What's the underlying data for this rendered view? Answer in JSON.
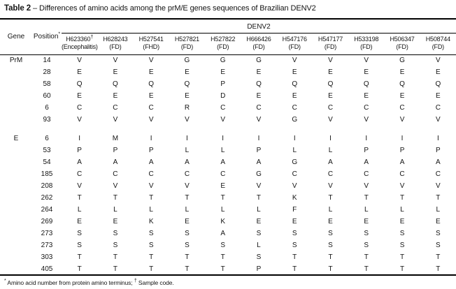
{
  "title": {
    "bold": "Table 2",
    "rest": "– Differences of amino acids among the prM/E genes sequences of Brazilian DENV2"
  },
  "header": {
    "gene": "Gene",
    "position": "Position",
    "position_mark": "*",
    "group": "DENV2",
    "columns": [
      {
        "id": "H623360",
        "mark": "†",
        "type": "(Encephalitis)"
      },
      {
        "id": "H628243",
        "mark": "",
        "type": "(FD)"
      },
      {
        "id": "H527541",
        "mark": "",
        "type": "(FHD)"
      },
      {
        "id": "H527821",
        "mark": "",
        "type": "(FD)"
      },
      {
        "id": "H527822",
        "mark": "",
        "type": "(FD)"
      },
      {
        "id": "H666426",
        "mark": "",
        "type": "(FD)"
      },
      {
        "id": "H547176",
        "mark": "",
        "type": "(FD)"
      },
      {
        "id": "H547177",
        "mark": "",
        "type": "(FD)"
      },
      {
        "id": "H533198",
        "mark": "",
        "type": "(FD)"
      },
      {
        "id": "H506347",
        "mark": "",
        "type": "(FD)"
      },
      {
        "id": "H508744",
        "mark": "",
        "type": "(FD)"
      }
    ]
  },
  "sections": [
    {
      "gene": "PrM",
      "rows": [
        {
          "position": "14",
          "values": [
            "V",
            "V",
            "V",
            "G",
            "G",
            "G",
            "V",
            "V",
            "V",
            "G",
            "V"
          ]
        },
        {
          "position": "28",
          "values": [
            "E",
            "E",
            "E",
            "E",
            "E",
            "E",
            "E",
            "E",
            "E",
            "E",
            "E"
          ]
        },
        {
          "position": "58",
          "values": [
            "Q",
            "Q",
            "Q",
            "Q",
            "P",
            "Q",
            "Q",
            "Q",
            "Q",
            "Q",
            "Q"
          ]
        },
        {
          "position": "60",
          "values": [
            "E",
            "E",
            "E",
            "E",
            "D",
            "E",
            "E",
            "E",
            "E",
            "E",
            "E"
          ]
        },
        {
          "position": "6",
          "values": [
            "C",
            "C",
            "C",
            "R",
            "C",
            "C",
            "C",
            "C",
            "C",
            "C",
            "C"
          ]
        },
        {
          "position": "93",
          "values": [
            "V",
            "V",
            "V",
            "V",
            "V",
            "V",
            "G",
            "V",
            "V",
            "V",
            "V"
          ]
        }
      ]
    },
    {
      "gene": "E",
      "rows": [
        {
          "position": "6",
          "values": [
            "I",
            "M",
            "I",
            "I",
            "I",
            "I",
            "I",
            "I",
            "I",
            "I",
            "I"
          ]
        },
        {
          "position": "53",
          "values": [
            "P",
            "P",
            "P",
            "L",
            "L",
            "P",
            "L",
            "L",
            "P",
            "P",
            "P"
          ]
        },
        {
          "position": "54",
          "values": [
            "A",
            "A",
            "A",
            "A",
            "A",
            "A",
            "G",
            "A",
            "A",
            "A",
            "A"
          ]
        },
        {
          "position": "185",
          "values": [
            "C",
            "C",
            "C",
            "C",
            "C",
            "G",
            "C",
            "C",
            "C",
            "C",
            "C"
          ]
        },
        {
          "position": "208",
          "values": [
            "V",
            "V",
            "V",
            "V",
            "E",
            "V",
            "V",
            "V",
            "V",
            "V",
            "V"
          ]
        },
        {
          "position": "262",
          "values": [
            "T",
            "T",
            "T",
            "T",
            "T",
            "T",
            "K",
            "T",
            "T",
            "T",
            "T"
          ]
        },
        {
          "position": "264",
          "values": [
            "L",
            "L",
            "L",
            "L",
            "L",
            "L",
            "F",
            "L",
            "L",
            "L",
            "L"
          ]
        },
        {
          "position": "269",
          "values": [
            "E",
            "E",
            "K",
            "E",
            "K",
            "E",
            "E",
            "E",
            "E",
            "E",
            "E"
          ]
        },
        {
          "position": "273",
          "values": [
            "S",
            "S",
            "S",
            "S",
            "A",
            "S",
            "S",
            "S",
            "S",
            "S",
            "S"
          ]
        },
        {
          "position": "273",
          "values": [
            "S",
            "S",
            "S",
            "S",
            "S",
            "L",
            "S",
            "S",
            "S",
            "S",
            "S"
          ]
        },
        {
          "position": "303",
          "values": [
            "T",
            "T",
            "T",
            "T",
            "T",
            "S",
            "T",
            "T",
            "T",
            "T",
            "T"
          ]
        },
        {
          "position": "405",
          "values": [
            "T",
            "T",
            "T",
            "T",
            "T",
            "P",
            "T",
            "T",
            "T",
            "T",
            "T"
          ]
        }
      ]
    }
  ],
  "footnote": {
    "mark1": "*",
    "text1": " Amino acid number from protein amino terminus; ",
    "mark2": "†",
    "text2": " Sample code."
  }
}
